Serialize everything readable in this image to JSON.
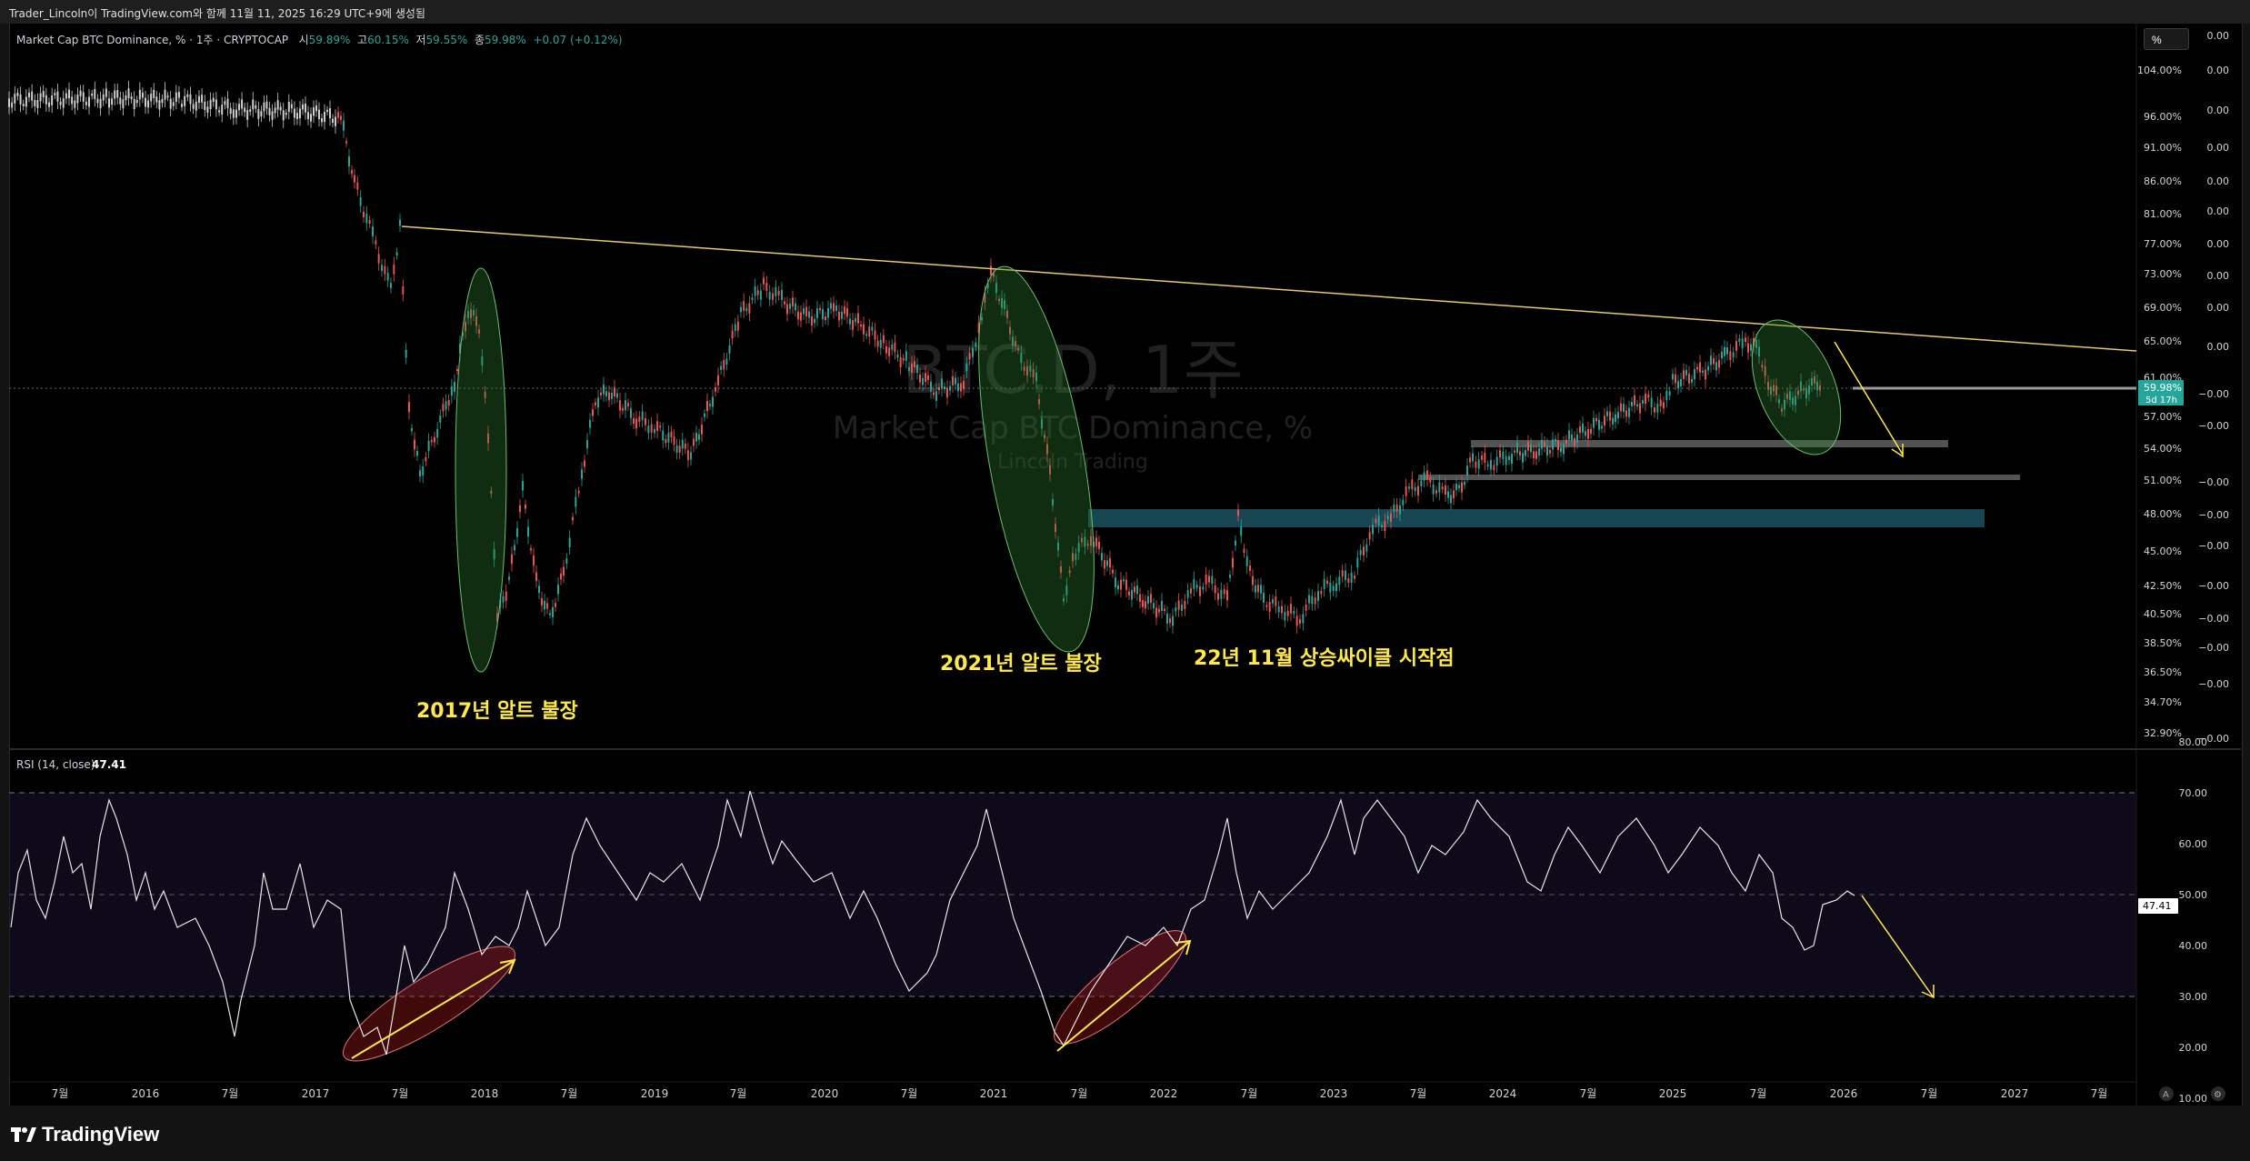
{
  "header": {
    "caption": "Trader_Lincoln이 TradingView.com와 함께 11월 11, 2025 16:29 UTC+9에 생성됨"
  },
  "legend": {
    "symbol": "Market Cap BTC Dominance, % · 1주 · CRYPTOCAP",
    "open_label": "시",
    "open": "59.89%",
    "high_label": "고",
    "high": "60.15%",
    "low_label": "저",
    "low": "59.55%",
    "close_label": "종",
    "close": "59.98%",
    "change": "+0.07 (+0.12%)"
  },
  "watermark": {
    "ticker": "BTC.D, 1주",
    "name": "Market Cap BTC Dominance, %",
    "author": "Lincoln Trading"
  },
  "toolbar": {
    "unit_button": "%"
  },
  "price_axis": {
    "labels": [
      "104.00%",
      "96.00%",
      "91.00%",
      "86.00%",
      "81.00%",
      "77.00%",
      "73.00%",
      "69.00%",
      "65.00%",
      "61.00%",
      "57.00%",
      "54.00%",
      "51.00%",
      "48.00%",
      "45.00%",
      "42.50%",
      "40.50%",
      "38.50%",
      "36.50%",
      "34.70%",
      "32.90%"
    ],
    "right_labels": [
      "0.00",
      "0.00",
      "0.00",
      "0.00",
      "0.00",
      "0.00",
      "0.00",
      "0.00",
      "0.00",
      "0.00",
      "−0.00",
      "−0.00",
      "−0.00",
      "−0.00",
      "−0.00",
      "−0.00",
      "−0.00",
      "−0.00",
      "−0.00",
      "−0.00"
    ],
    "current_price": "59.98%",
    "countdown": "5d 17h"
  },
  "rsi": {
    "label": "RSI (14, close)",
    "value": "47.41",
    "axis_labels": [
      "80.00",
      "70.00",
      "60.00",
      "50.00",
      "40.00",
      "30.00",
      "20.00",
      "10.00"
    ]
  },
  "time_axis": {
    "labels": [
      "7월",
      "2016",
      "7월",
      "2017",
      "7월",
      "2018",
      "7월",
      "2019",
      "7월",
      "2020",
      "7월",
      "2021",
      "7월",
      "2022",
      "7월",
      "2023",
      "7월",
      "2024",
      "7월",
      "2025",
      "7월",
      "2026",
      "7월",
      "2027",
      "7월"
    ]
  },
  "annotations": {
    "alt_2017": "2017년 알트 불장",
    "alt_2021": "2021년 알트 불장",
    "cycle_2022": "22년 11월 상승싸이클 시작점"
  },
  "colors": {
    "background": "#000000",
    "candle_up": "#26a69a",
    "candle_down": "#ef5350",
    "annotation_text": "#ffe94a",
    "trendline": "#e6c86e",
    "price_badge": "#26a69a"
  },
  "footer": {
    "brand": "TradingView"
  }
}
